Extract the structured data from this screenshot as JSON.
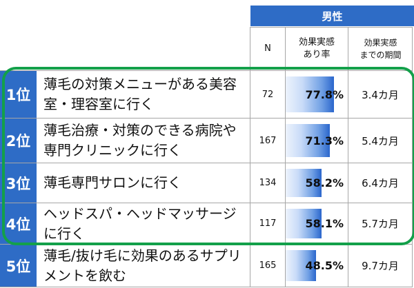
{
  "header": {
    "group_label": "男性",
    "col_n": "N",
    "col_rate": "効果実感\nあり率",
    "col_period": "効果実感\nまでの期間"
  },
  "rows": [
    {
      "rank": "1位",
      "item": "薄毛の対策メニューがある美容室・理容室に行く",
      "n": "72",
      "rate_value": 77.8,
      "rate": "77.8%",
      "period": "3.4カ月"
    },
    {
      "rank": "2位",
      "item": "薄毛治療・対策のできる病院や専門クリニックに行く",
      "n": "167",
      "rate_value": 71.3,
      "rate": "71.3%",
      "period": "5.4カ月"
    },
    {
      "rank": "3位",
      "item": "薄毛専門サロンに行く",
      "n": "134",
      "rate_value": 58.2,
      "rate": "58.2%",
      "period": "6.4カ月"
    },
    {
      "rank": "4位",
      "item": "ヘッドスパ・ヘッドマッサージに行く",
      "n": "117",
      "rate_value": 58.1,
      "rate": "58.1%",
      "period": "5.7カ月"
    },
    {
      "rank": "5位",
      "item": "薄毛/抜け毛に効果のあるサプリメントを飲む",
      "n": "165",
      "rate_value": 48.5,
      "rate": "48.5%",
      "period": "9.7カ月"
    }
  ],
  "colors": {
    "rank_bg": "#2e6cc6",
    "header_bg": "#2e6cc6",
    "highlight": "#13a04a"
  }
}
